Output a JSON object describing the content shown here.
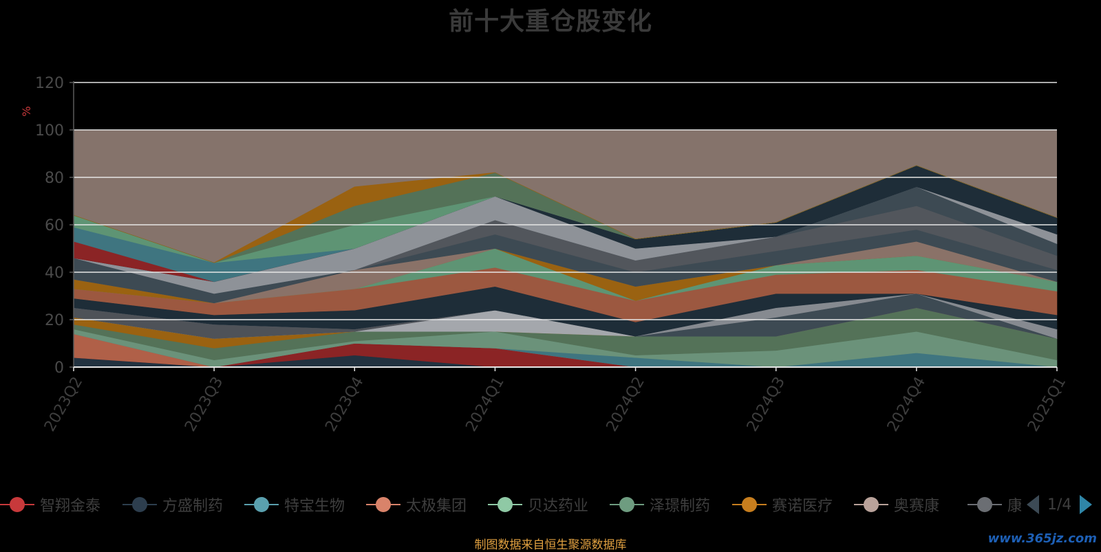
{
  "page": {
    "title": "前十大重仓股变化",
    "source_note": "制图数据来自恒生聚源数据库",
    "watermark": "www.365jz.com"
  },
  "legend_pager": {
    "text": "1/4"
  },
  "chart_data": {
    "type": "area",
    "title": "前十大重仓股变化",
    "ylabel": "%",
    "ylim": [
      0,
      120
    ],
    "yticks": [
      0,
      20,
      40,
      60,
      80,
      100,
      120
    ],
    "categories": [
      "2023Q2",
      "2023Q3",
      "2023Q4",
      "2024Q1",
      "2024Q2",
      "2024Q3",
      "2024Q4",
      "2025Q1"
    ],
    "grid": true,
    "legend_position": "bottom",
    "background_band": {
      "from": 0,
      "to": 100,
      "color": "#85736b"
    },
    "series": [
      {
        "name": "",
        "color": "#223240",
        "values": [
          4,
          0,
          5,
          0,
          0,
          0,
          0,
          0
        ]
      },
      {
        "name": "智翔金泰",
        "color": "#8b2425",
        "values": [
          0,
          0,
          5,
          8,
          0,
          0,
          0,
          0
        ]
      },
      {
        "name": "",
        "color": "#b06048",
        "values": [
          10,
          0,
          0,
          0,
          0,
          0,
          0,
          0
        ]
      },
      {
        "name": "特宝生物",
        "color": "#3f7580",
        "values": [
          0,
          0,
          0,
          0,
          4,
          0,
          6,
          0
        ]
      },
      {
        "name": "泽璟制药",
        "color": "#6b927a",
        "values": [
          2,
          3,
          1,
          7,
          1,
          7,
          9,
          3
        ]
      },
      {
        "name": "",
        "color": "#547258",
        "values": [
          2,
          5,
          4,
          0,
          8,
          6,
          10,
          9
        ]
      },
      {
        "name": "赛诺医疗",
        "color": "#9a6211",
        "values": [
          3,
          4,
          0,
          0,
          0,
          0,
          0,
          0
        ]
      },
      {
        "name": "",
        "color": "#a4a7ac",
        "values": [
          0,
          0,
          0,
          9,
          0,
          0,
          0,
          0
        ]
      },
      {
        "name": "",
        "color": "#4e5258",
        "values": [
          4,
          6,
          1,
          0,
          0,
          0,
          0,
          0
        ]
      },
      {
        "name": "方盛制药",
        "color": "#3d4a53",
        "values": [
          0,
          0,
          0,
          0,
          0,
          8,
          6,
          0
        ]
      },
      {
        "name": "",
        "color": "#868a90",
        "values": [
          0,
          0,
          0,
          0,
          0,
          4,
          0,
          4
        ]
      },
      {
        "name": "",
        "color": "#1e2d38",
        "values": [
          4,
          4,
          8,
          10,
          6,
          6,
          0,
          6
        ]
      },
      {
        "name": "太极集团",
        "color": "#9c5840",
        "values": [
          4,
          5,
          9,
          8,
          9,
          8,
          10,
          10
        ]
      },
      {
        "name": "贝达药业",
        "color": "#5e9474",
        "values": [
          0,
          0,
          0,
          8,
          0,
          4,
          6,
          4
        ]
      },
      {
        "name": "",
        "color": "#9a6211",
        "values": [
          4,
          0,
          0,
          0,
          6,
          0,
          0,
          0
        ]
      },
      {
        "name": "奥赛康",
        "color": "#8a7268",
        "values": [
          0,
          0,
          8,
          0,
          0,
          0,
          6,
          0
        ]
      },
      {
        "name": "",
        "color": "#3d4a53",
        "values": [
          9,
          4,
          0,
          6,
          6,
          6,
          5,
          5
        ]
      },
      {
        "name": "康",
        "color": "#52565c",
        "values": [
          0,
          0,
          0,
          6,
          5,
          6,
          10,
          6
        ]
      },
      {
        "name": "",
        "color": "#3d4a53",
        "values": [
          0,
          0,
          0,
          0,
          0,
          0,
          8,
          5
        ]
      },
      {
        "name": "",
        "color": "#8e9298",
        "values": [
          0,
          5,
          9,
          10,
          5,
          0,
          0,
          4
        ]
      },
      {
        "name": "",
        "color": "#1e2d38",
        "values": [
          0,
          0,
          0,
          0,
          4,
          6,
          9,
          7
        ]
      },
      {
        "name": "",
        "color": "#8b2425",
        "values": [
          7,
          0,
          0,
          0,
          0,
          0,
          0,
          0
        ]
      },
      {
        "name": "",
        "color": "#3f7580",
        "values": [
          6,
          8,
          0,
          0,
          0,
          0,
          0,
          0
        ]
      },
      {
        "name": "",
        "color": "#5e9474",
        "values": [
          5,
          0,
          10,
          0,
          0,
          0,
          0,
          0
        ]
      },
      {
        "name": "",
        "color": "#547258",
        "values": [
          0,
          0,
          8,
          10,
          0,
          0,
          0,
          0
        ]
      },
      {
        "name": "",
        "color": "#9a6211",
        "values": [
          0,
          0,
          8,
          0,
          0,
          0,
          0,
          0
        ]
      }
    ],
    "legend": [
      {
        "name": "智翔金泰",
        "color": "#c8393b"
      },
      {
        "name": "方盛制药",
        "color": "#2d3e4e"
      },
      {
        "name": "特宝生物",
        "color": "#5aa0ae"
      },
      {
        "name": "太极集团",
        "color": "#d9836a"
      },
      {
        "name": "贝达药业",
        "color": "#8fc9a5"
      },
      {
        "name": "泽璟制药",
        "color": "#6e9c80"
      },
      {
        "name": "赛诺医疗",
        "color": "#c77e1e"
      },
      {
        "name": "奥赛康",
        "color": "#b9a29a"
      },
      {
        "name": "康",
        "color": "#6b6e73"
      }
    ]
  }
}
